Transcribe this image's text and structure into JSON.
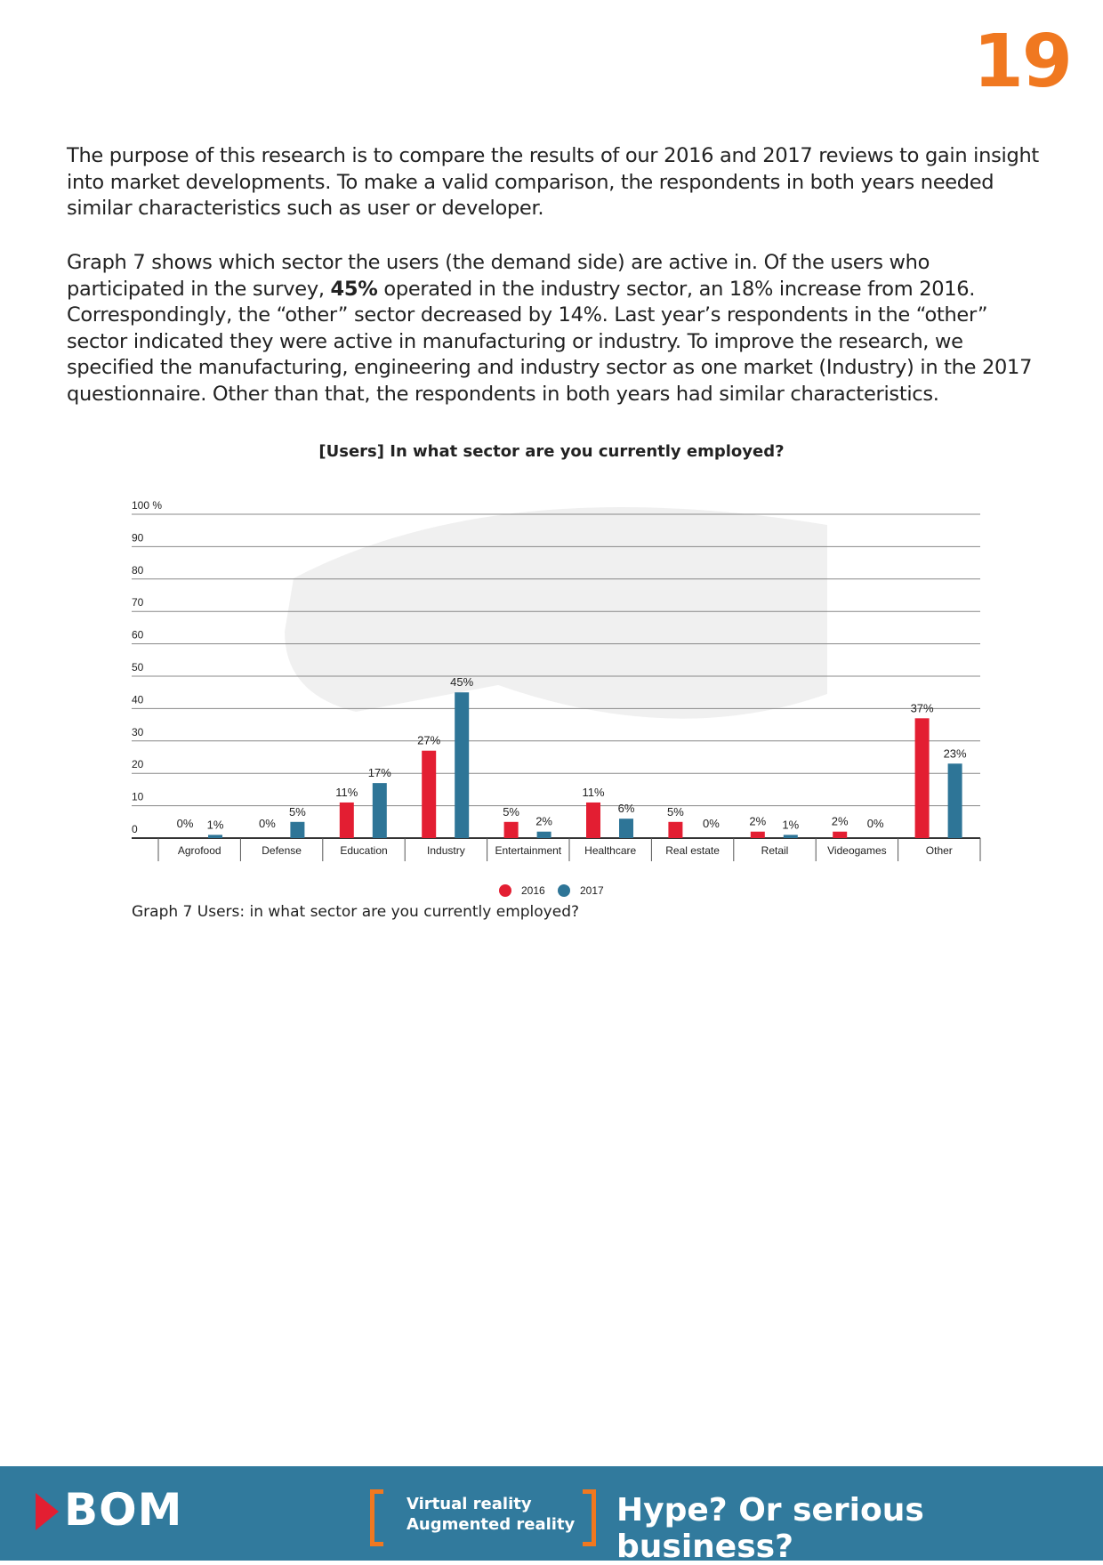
{
  "page_number": "19",
  "paragraphs": {
    "p1": "The purpose of this research is to compare the results of our 2016 and 2017 reviews to gain insight into market developments. To make a valid comparison, the respondents in both years needed similar characteristics such as user or developer.",
    "p2_before": "Graph 7 shows which sector the users (the demand side) are active in. Of the users who participated in the survey, ",
    "p2_bold": "45%",
    "p2_after": " operated in the industry sector, an 18% increase from 2016. Correspondingly, the “other” sector decreased by 14%. Last year’s respondents in the “other” sector indicated they were active in manufacturing or industry. To improve the research, we specified the manufacturing, engineering and industry sector as one market (Industry) in the 2017 questionnaire. Other than that, the respondents in both years had similar characteristics."
  },
  "chart_data": {
    "type": "bar",
    "title": "[Users] In what sector are you currently employed?",
    "categories": [
      "Agrofood",
      "Defense",
      "Education",
      "Industry",
      "Entertainment",
      "Healthcare",
      "Real estate",
      "Retail",
      "Videogames",
      "Other"
    ],
    "series": [
      {
        "name": "2016",
        "color": "#e31e32",
        "values": [
          0,
          0,
          11,
          27,
          5,
          11,
          5,
          2,
          2,
          37
        ]
      },
      {
        "name": "2017",
        "color": "#2e7597",
        "values": [
          1,
          5,
          17,
          45,
          2,
          6,
          0,
          1,
          0,
          23
        ]
      }
    ],
    "yticks": [
      "0",
      "10",
      "20",
      "30",
      "40",
      "50",
      "60",
      "70",
      "80",
      "90",
      "100 %"
    ],
    "ylim": [
      0,
      100
    ],
    "grid": true,
    "legend": "bottom-center",
    "value_suffix": "%"
  },
  "caption": "Graph 7 Users: in what sector are you currently employed?",
  "footer": {
    "logo": "BOM",
    "tag_line1": "Virtual reality",
    "tag_line2": "Augmented  reality",
    "slogan": "Hype? Or serious business?",
    "background": "#317a9d",
    "accent": "#f07820"
  }
}
